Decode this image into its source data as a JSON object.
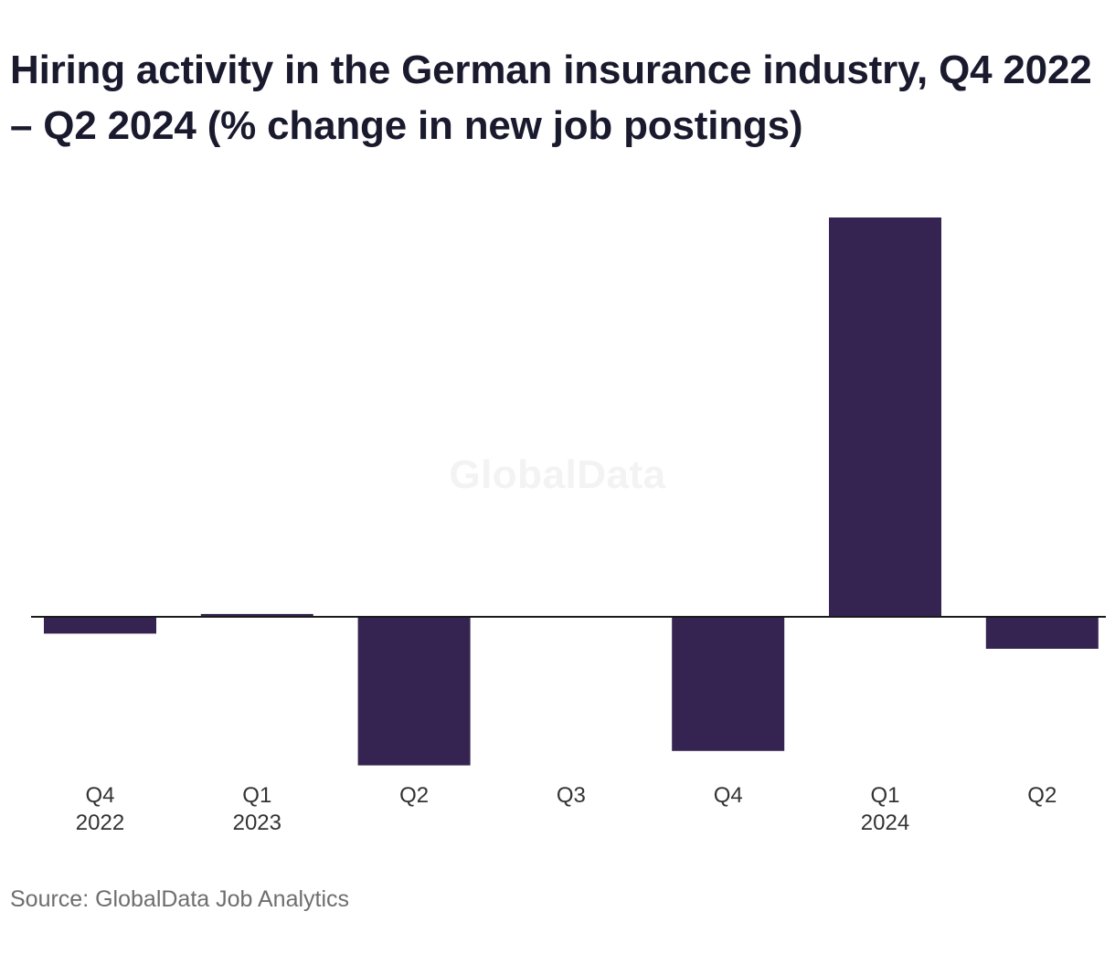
{
  "title": "Hiring activity in the German insurance industry, Q4 2022 – Q2 2024 (% change in new job postings)",
  "watermark": "GlobalData",
  "source": "Source: GlobalData Job Analytics",
  "colors": {
    "bar": "#352451",
    "axis": "#1a1a1a",
    "tick_text": "#333333"
  },
  "chart_data": {
    "type": "bar",
    "categories": [
      {
        "quarter": "Q4",
        "year": "2022"
      },
      {
        "quarter": "Q1",
        "year": "2023"
      },
      {
        "quarter": "Q2",
        "year": ""
      },
      {
        "quarter": "Q3",
        "year": ""
      },
      {
        "quarter": "Q4",
        "year": ""
      },
      {
        "quarter": "Q1",
        "year": "2024"
      },
      {
        "quarter": "Q2",
        "year": ""
      }
    ],
    "values": [
      -4.2,
      0.7,
      -37.2,
      0.0,
      -33.6,
      100.0,
      -8.0
    ],
    "ylim": [
      -45,
      105
    ],
    "xlabel": "",
    "ylabel": "",
    "grid": false,
    "legend": "none"
  }
}
